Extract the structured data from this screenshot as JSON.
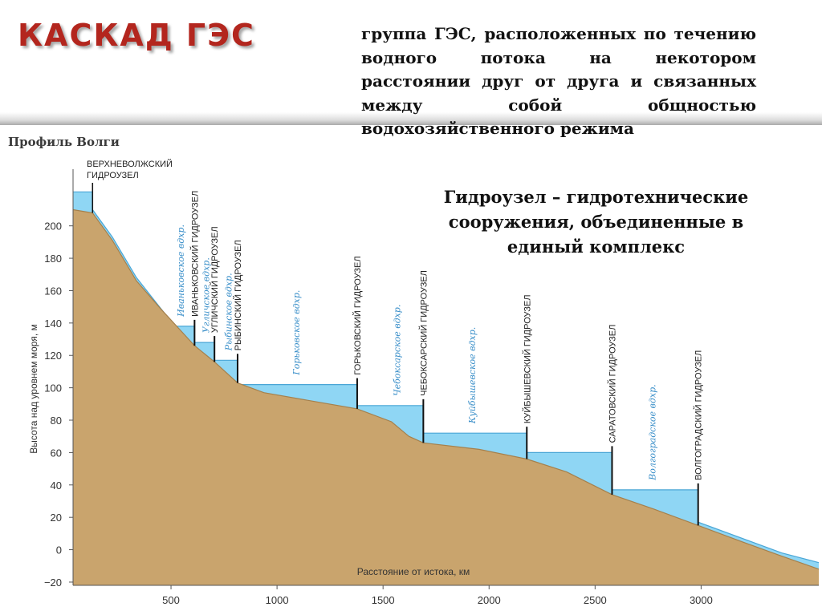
{
  "header": {
    "title": "КАСКАД ГЭС"
  },
  "definition": "группа ГЭС, расположенных по течению водного потока на некотором расстоянии друг от друга и связанных между собой общностью водохозяйственного режима",
  "definition2": "Гидроузел – гидротехнические сооружения, объединенные в единый комплекс",
  "chart_data": {
    "type": "area",
    "title": "Профиль Волги",
    "xlabel": "Расстояние от истока, км",
    "ylabel": "Высота над уровнем моря, м",
    "xlim": [
      38,
      3555
    ],
    "ylim": [
      -22,
      235
    ],
    "xticks": [
      500,
      1000,
      1500,
      2000,
      2500,
      3000
    ],
    "yticks": [
      200,
      180,
      160,
      140,
      120,
      100,
      80,
      60,
      40,
      20,
      0,
      {
        "value": -20,
        "label": "−20"
      }
    ],
    "series": [
      {
        "color": "#8fd6f4",
        "x": [
          38,
          130,
          130,
          224,
          337,
          518,
          611,
          611,
          705,
          705,
          814,
          814,
          1378,
          1378,
          1690,
          1690,
          2178,
          2178,
          2580,
          2580,
          2986,
          2986,
          3380,
          3555
        ],
        "values": [
          221,
          221,
          210,
          193,
          168,
          138,
          138,
          128,
          128,
          117,
          117,
          102,
          102,
          89,
          89,
          72,
          72,
          60,
          60,
          37,
          37,
          17,
          -2,
          -8
        ]
      },
      {
        "color": "#c9a46d",
        "x": [
          38,
          130,
          224,
          337,
          450,
          611,
          705,
          814,
          938,
          1201,
          1378,
          1540,
          1622,
          1690,
          1953,
          2178,
          2366,
          2580,
          2779,
          2986,
          3192,
          3380,
          3555
        ],
        "values": [
          210,
          208,
          191,
          166,
          149,
          126,
          116,
          103,
          97,
          91,
          87,
          79,
          70,
          66,
          62,
          56,
          48,
          34,
          25,
          15,
          5,
          -4,
          -12
        ]
      }
    ],
    "top_dam": {
      "label": "ВЕРХНЕВОЛЖСКИЙ ГИДРОУЗЕЛ",
      "x": 130
    },
    "dams": [
      {
        "label": "ИВАНЬКОВСКИЙ ГИДРОУЗЕЛ",
        "x": 611
      },
      {
        "label": "УГЛИЧСКИЙ ГИДРОУЗЕЛ",
        "x": 705
      },
      {
        "label": "РЫБИНСКИЙ ГИДРОУЗЕЛ",
        "x": 814
      },
      {
        "label": "ГОРЬКОВСКИЙ ГИДРОУЗЕЛ",
        "x": 1378
      },
      {
        "label": "ЧЕБОКСАРСКИЙ ГИДРОУЗЕЛ",
        "x": 1690
      },
      {
        "label": "КУЙБЫШЕВСКИЙ ГИДРОУЗЕЛ",
        "x": 2178
      },
      {
        "label": "САРАТОВСКИЙ ГИДРОУЗЕЛ",
        "x": 2580
      },
      {
        "label": "ВОЛГОГРАДСКИЙ ГИДРОУЗЕЛ",
        "x": 2986
      }
    ],
    "reservoirs": [
      {
        "label": "Иваньковское вдхр.",
        "x": 545
      },
      {
        "label": "Угличское вдхр.",
        "x": 665
      },
      {
        "label": "Рыбинское вдхр.",
        "x": 770
      },
      {
        "label": "Горьковское вдхр.",
        "x": 1090
      },
      {
        "label": "Чебоксарское вдхр.",
        "x": 1565
      },
      {
        "label": "Куйбышевское вдхр.",
        "x": 1920
      },
      {
        "label": "Волгоградское вдхр.",
        "x": 2770
      }
    ]
  }
}
